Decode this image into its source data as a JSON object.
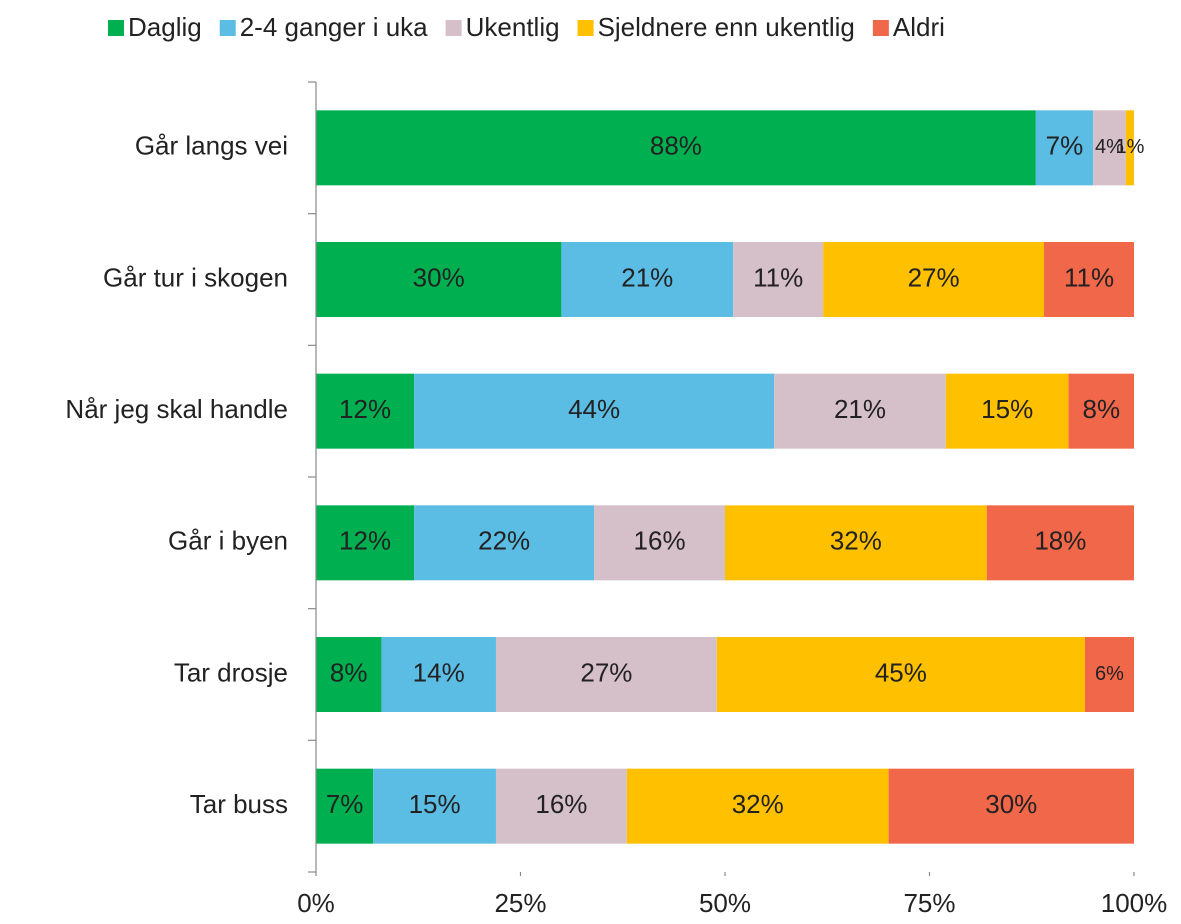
{
  "chart_data": {
    "type": "stacked-barh",
    "categories": [
      "Går langs vei",
      "Går tur i skogen",
      "Når jeg skal handle",
      "Går i byen",
      "Tar drosje",
      "Tar buss"
    ],
    "series": [
      {
        "name": "Daglig",
        "color": "#00b050",
        "values": [
          88,
          30,
          12,
          12,
          8,
          7
        ],
        "value_labels": [
          "88%",
          "30%",
          "12%",
          "12%",
          "8%",
          "7%"
        ]
      },
      {
        "name": "2-4 ganger i uka",
        "color": "#5bbce4",
        "values": [
          7,
          21,
          44,
          22,
          14,
          15
        ],
        "value_labels": [
          "7%",
          "21%",
          "44%",
          "22%",
          "14%",
          "15%"
        ]
      },
      {
        "name": "Ukentlig",
        "color": "#d5bfc8",
        "values": [
          4,
          11,
          21,
          16,
          27,
          16
        ],
        "value_labels": [
          "4%",
          "11%",
          "21%",
          "16%",
          "27%",
          "16%"
        ]
      },
      {
        "name": "Sjeldnere enn ukentlig",
        "color": "#ffc000",
        "values": [
          1,
          27,
          15,
          32,
          45,
          32
        ],
        "value_labels": [
          "1%",
          "27%",
          "15%",
          "32%",
          "45%",
          "32%"
        ]
      },
      {
        "name": "Aldri",
        "color": "#f0674a",
        "values": [
          null,
          11,
          8,
          18,
          6,
          30
        ],
        "value_labels": [
          null,
          "11%",
          "8%",
          "18%",
          "6%",
          "30%"
        ]
      }
    ],
    "xlim": [
      0,
      100
    ],
    "xticks": [
      {
        "value": 0,
        "label": "0%"
      },
      {
        "value": 25,
        "label": "25%"
      },
      {
        "value": 50,
        "label": "50%"
      },
      {
        "value": 75,
        "label": "75%"
      },
      {
        "value": 100,
        "label": "100%"
      }
    ],
    "legend": "top"
  }
}
